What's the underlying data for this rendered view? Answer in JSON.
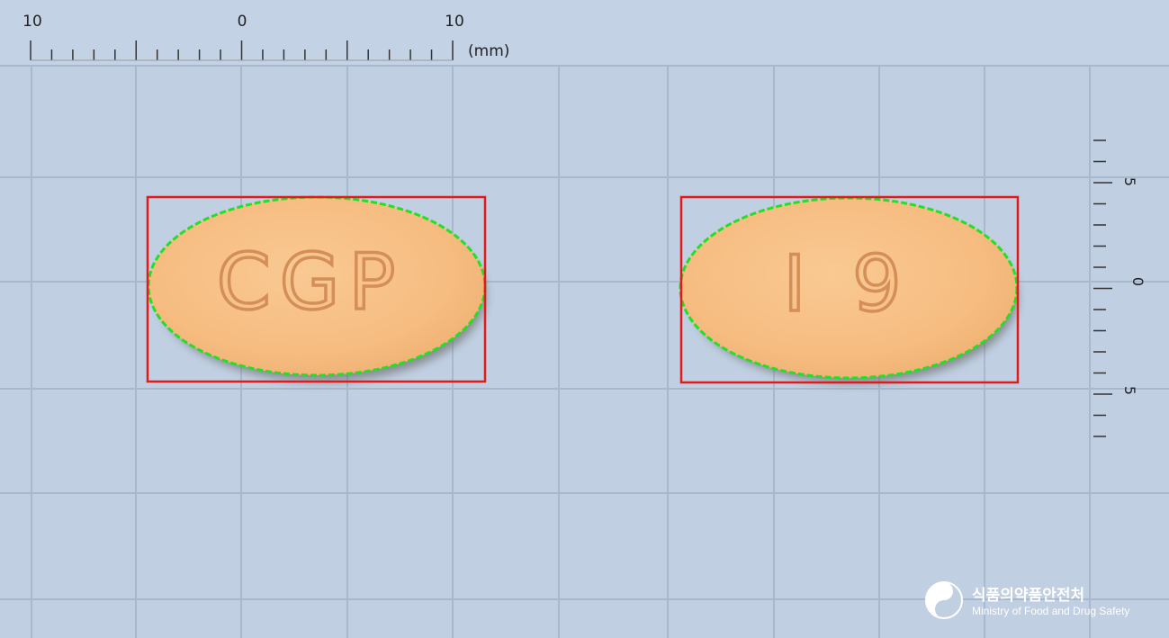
{
  "ruler_top": {
    "labels": [
      "10",
      "0",
      "10"
    ],
    "unit": "(mm)"
  },
  "ruler_right": {
    "labels": [
      "5",
      "0",
      "5"
    ]
  },
  "pills": [
    {
      "imprint": "CGP",
      "side": "front"
    },
    {
      "imprint": "I 9",
      "side": "back"
    }
  ],
  "colors": {
    "background": "#c0cfe2",
    "grid": "#a9b9cd",
    "pill": "#f7be83",
    "pill_shadow": "#6e6a66",
    "imprint": "#d48e57",
    "box": "#e41a1a",
    "contour": "#22e022"
  },
  "logo": {
    "korean": "식품의약품안전처",
    "english": "Ministry of Food and Drug Safety",
    "icon": "mfds-emblem-icon"
  }
}
